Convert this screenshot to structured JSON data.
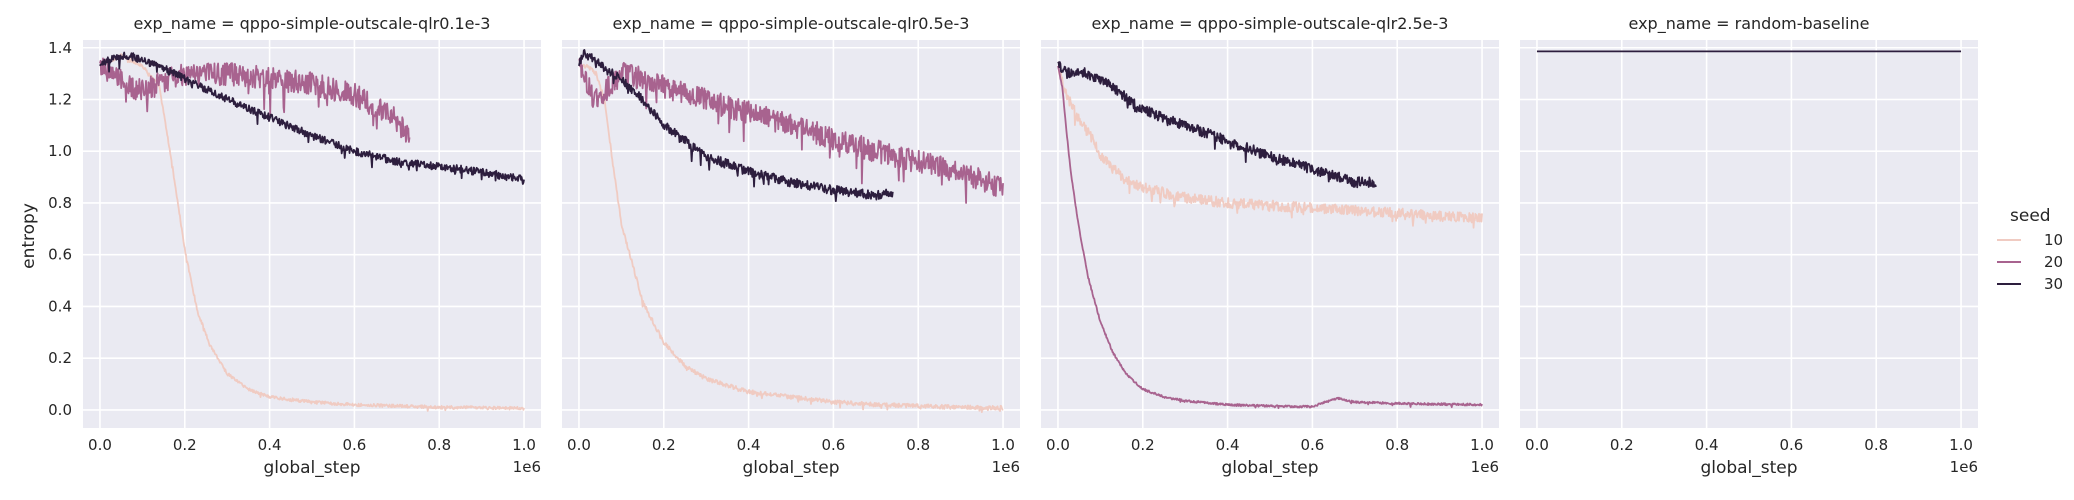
{
  "chart_data": {
    "type": "line",
    "ylabel": "entropy",
    "xlabel": "global_step",
    "x_offset_label": "1e6",
    "xlim": [
      -0.04,
      1.04
    ],
    "ylim": [
      -0.07,
      1.43
    ],
    "x_ticks": [
      0.0,
      0.2,
      0.4,
      0.6,
      0.8,
      1.0
    ],
    "x_tick_labels": [
      "0.0",
      "0.2",
      "0.4",
      "0.6",
      "0.8",
      "1.0"
    ],
    "y_ticks": [
      0.0,
      0.2,
      0.4,
      0.6,
      0.8,
      1.0,
      1.2,
      1.4
    ],
    "y_tick_labels": [
      "0.0",
      "0.2",
      "0.4",
      "0.6",
      "0.8",
      "1.0",
      "1.2",
      "1.4"
    ],
    "grid": true,
    "legend": {
      "title": "seed",
      "placement": "right",
      "entries": [
        {
          "label": "10",
          "color": "#f0cbc2"
        },
        {
          "label": "20",
          "color": "#a8638f"
        },
        {
          "label": "30",
          "color": "#2d1e3e"
        }
      ]
    },
    "panels": [
      {
        "title": "exp_name = qppo-simple-outscale-qlr0.1e-3",
        "series": [
          {
            "seed": "10",
            "color": "#f0cbc2",
            "noise": 0.006,
            "x": [
              0.0,
              0.05,
              0.1,
              0.14,
              0.17,
              0.2,
              0.23,
              0.26,
              0.3,
              0.35,
              0.4,
              0.5,
              0.6,
              0.7,
              0.8,
              0.9,
              1.0
            ],
            "y": [
              1.33,
              1.37,
              1.33,
              1.25,
              0.95,
              0.62,
              0.38,
              0.25,
              0.14,
              0.08,
              0.05,
              0.03,
              0.02,
              0.015,
              0.01,
              0.008,
              0.006
            ]
          },
          {
            "seed": "20",
            "color": "#a8638f",
            "noise": 0.045,
            "x": [
              0.0,
              0.05,
              0.1,
              0.15,
              0.2,
              0.3,
              0.4,
              0.5,
              0.6,
              0.65,
              0.7,
              0.73
            ],
            "y": [
              1.34,
              1.27,
              1.23,
              1.27,
              1.3,
              1.3,
              1.28,
              1.26,
              1.22,
              1.17,
              1.12,
              1.05
            ]
          },
          {
            "seed": "30",
            "color": "#2d1e3e",
            "noise": 0.015,
            "x": [
              0.0,
              0.03,
              0.07,
              0.1,
              0.15,
              0.2,
              0.3,
              0.4,
              0.5,
              0.6,
              0.7,
              0.8,
              0.9,
              1.0
            ],
            "y": [
              1.33,
              1.36,
              1.37,
              1.35,
              1.32,
              1.28,
              1.2,
              1.13,
              1.06,
              1.0,
              0.96,
              0.94,
              0.92,
              0.89
            ]
          }
        ]
      },
      {
        "title": "exp_name = qppo-simple-outscale-qlr0.5e-3",
        "series": [
          {
            "seed": "10",
            "color": "#f0cbc2",
            "noise": 0.008,
            "x": [
              0.0,
              0.02,
              0.04,
              0.06,
              0.08,
              0.1,
              0.15,
              0.2,
              0.25,
              0.3,
              0.4,
              0.5,
              0.6,
              0.7,
              0.8,
              0.9,
              1.0
            ],
            "y": [
              1.33,
              1.33,
              1.3,
              1.2,
              0.95,
              0.72,
              0.42,
              0.26,
              0.17,
              0.12,
              0.07,
              0.05,
              0.03,
              0.02,
              0.015,
              0.01,
              0.008
            ]
          },
          {
            "seed": "20",
            "color": "#a8638f",
            "noise": 0.045,
            "x": [
              0.0,
              0.03,
              0.05,
              0.07,
              0.1,
              0.15,
              0.2,
              0.3,
              0.4,
              0.5,
              0.6,
              0.7,
              0.8,
              0.9,
              1.0
            ],
            "y": [
              1.35,
              1.22,
              1.19,
              1.25,
              1.3,
              1.28,
              1.25,
              1.2,
              1.15,
              1.1,
              1.05,
              1.0,
              0.96,
              0.92,
              0.86
            ]
          },
          {
            "seed": "30",
            "color": "#2d1e3e",
            "noise": 0.018,
            "x": [
              0.0,
              0.01,
              0.03,
              0.06,
              0.1,
              0.15,
              0.2,
              0.3,
              0.4,
              0.5,
              0.6,
              0.7,
              0.74
            ],
            "y": [
              1.33,
              1.38,
              1.36,
              1.32,
              1.28,
              1.2,
              1.1,
              0.98,
              0.92,
              0.88,
              0.85,
              0.83,
              0.84
            ]
          }
        ]
      },
      {
        "title": "exp_name = qppo-simple-outscale-qlr2.5e-3",
        "series": [
          {
            "seed": "10",
            "color": "#f0cbc2",
            "noise": 0.02,
            "x": [
              0.0,
              0.02,
              0.05,
              0.08,
              0.1,
              0.15,
              0.2,
              0.3,
              0.4,
              0.5,
              0.6,
              0.7,
              0.8,
              0.9,
              1.0
            ],
            "y": [
              1.33,
              1.22,
              1.12,
              1.05,
              0.98,
              0.9,
              0.86,
              0.82,
              0.8,
              0.79,
              0.78,
              0.77,
              0.76,
              0.75,
              0.74
            ]
          },
          {
            "seed": "20",
            "color": "#a8638f",
            "noise": 0.004,
            "x": [
              0.0,
              0.01,
              0.02,
              0.03,
              0.05,
              0.07,
              0.1,
              0.13,
              0.16,
              0.2,
              0.25,
              0.3,
              0.4,
              0.5,
              0.6,
              0.63,
              0.66,
              0.7,
              0.8,
              0.9,
              1.0
            ],
            "y": [
              1.33,
              1.25,
              1.08,
              0.92,
              0.7,
              0.52,
              0.34,
              0.22,
              0.14,
              0.08,
              0.05,
              0.035,
              0.02,
              0.015,
              0.012,
              0.03,
              0.045,
              0.03,
              0.025,
              0.022,
              0.02
            ]
          },
          {
            "seed": "30",
            "color": "#2d1e3e",
            "noise": 0.02,
            "x": [
              0.0,
              0.02,
              0.05,
              0.1,
              0.15,
              0.2,
              0.3,
              0.4,
              0.5,
              0.6,
              0.7,
              0.75
            ],
            "y": [
              1.34,
              1.3,
              1.31,
              1.28,
              1.22,
              1.16,
              1.1,
              1.04,
              0.98,
              0.93,
              0.88,
              0.88
            ]
          }
        ]
      },
      {
        "title": "exp_name = random-baseline",
        "series": [
          {
            "seed": "30",
            "color": "#2d1e3e",
            "noise": 0.0,
            "x": [
              0.0,
              1.0
            ],
            "y": [
              1.386,
              1.386
            ]
          }
        ]
      }
    ]
  }
}
